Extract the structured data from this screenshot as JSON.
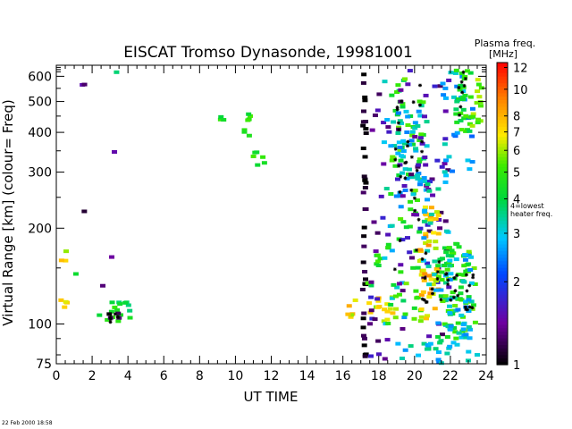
{
  "chart_data": {
    "type": "scatter",
    "title": "EISCAT Tromso Dynasonde,  19981001",
    "xlabel": "UT TIME",
    "ylabel": "Virtual Range [km]    (colour= Freq)",
    "xlim": [
      0,
      24
    ],
    "ylim": [
      75,
      650
    ],
    "y_scale": "log",
    "x_ticks": [
      "0",
      "2",
      "4",
      "6",
      "8",
      "10",
      "12",
      "14",
      "16",
      "18",
      "20",
      "22",
      "24"
    ],
    "y_ticks": [
      "75",
      "100",
      "200",
      "300",
      "400",
      "500",
      "600"
    ],
    "colorbar": {
      "title_line1": "Plasma freq.",
      "title_line2": "[MHz]",
      "scale": "log",
      "range": [
        1,
        12.5
      ],
      "tick_labels": [
        "1",
        "2",
        "3",
        "4",
        "5",
        "6",
        "7",
        "8",
        "10",
        "12"
      ],
      "note_line1": "4=lowest",
      "note_line2": "heater freq."
    },
    "timestamp": "22 Feb 2000 18:58",
    "groups": [
      {
        "x0": 0.2,
        "x1": 0.6,
        "y0": 110,
        "y1": 120,
        "f": 7,
        "count": 4
      },
      {
        "x0": 0.2,
        "x1": 0.6,
        "y0": 155,
        "y1": 172,
        "f": 7,
        "count": 3
      },
      {
        "x0": 1.0,
        "x1": 1.2,
        "y0": 140,
        "y1": 145,
        "f": 4.5,
        "count": 1
      },
      {
        "x0": 1.4,
        "x1": 1.6,
        "y0": 555,
        "y1": 580,
        "f": 1.3,
        "count": 2
      },
      {
        "x0": 1.4,
        "x1": 1.6,
        "y0": 225,
        "y1": 230,
        "f": 1.3,
        "count": 1
      },
      {
        "x0": 2.5,
        "x1": 2.8,
        "y0": 130,
        "y1": 135,
        "f": 1.3,
        "count": 1
      },
      {
        "x0": 2.9,
        "x1": 3.1,
        "y0": 160,
        "y1": 165,
        "f": 1.3,
        "count": 1
      },
      {
        "x0": 3.2,
        "x1": 3.4,
        "y0": 345,
        "y1": 350,
        "f": 1.3,
        "count": 1
      },
      {
        "x0": 3.2,
        "x1": 3.4,
        "y0": 615,
        "y1": 625,
        "f": 3.6,
        "count": 1
      },
      {
        "x0": 2.4,
        "x1": 4.2,
        "y0": 100,
        "y1": 125,
        "f": 4.5,
        "count": 16
      },
      {
        "x0": 2.9,
        "x1": 3.6,
        "y0": 100,
        "y1": 108,
        "f": 1.2,
        "count": 4
      },
      {
        "x0": 9.1,
        "x1": 9.4,
        "y0": 430,
        "y1": 450,
        "f": 4.5,
        "count": 3
      },
      {
        "x0": 10.5,
        "x1": 10.9,
        "y0": 380,
        "y1": 470,
        "f": 4.5,
        "count": 7
      },
      {
        "x0": 10.9,
        "x1": 11.8,
        "y0": 300,
        "y1": 370,
        "f": 4.5,
        "count": 6
      },
      {
        "x0": 16.2,
        "x1": 16.9,
        "y0": 105,
        "y1": 125,
        "f": 7,
        "count": 6
      },
      {
        "x0": 17.1,
        "x1": 17.3,
        "y0": 75,
        "y1": 630,
        "f": 1.05,
        "count": 38
      },
      {
        "x0": 17.4,
        "x1": 18.0,
        "y0": 105,
        "y1": 125,
        "f": 7,
        "count": 6
      },
      {
        "x0": 17.4,
        "x1": 18.1,
        "y0": 130,
        "y1": 180,
        "f": 4.5,
        "count": 8
      },
      {
        "x0": 17.5,
        "x1": 18.6,
        "y0": 75,
        "y1": 630,
        "f": 1.5,
        "count": 26
      },
      {
        "x0": 18.0,
        "x1": 19.0,
        "y0": 100,
        "y1": 125,
        "f": 6.5,
        "count": 10
      },
      {
        "x0": 18.3,
        "x1": 19.5,
        "y0": 75,
        "y1": 630,
        "f": 3.2,
        "count": 24
      },
      {
        "x0": 18.5,
        "x1": 20.5,
        "y0": 100,
        "y1": 600,
        "f": 4.8,
        "count": 70
      },
      {
        "x0": 19.0,
        "x1": 20.8,
        "y0": 250,
        "y1": 500,
        "f": 3.0,
        "count": 45
      },
      {
        "x0": 19.0,
        "x1": 22.0,
        "y0": 90,
        "y1": 630,
        "f": 1.5,
        "count": 60
      },
      {
        "x0": 20.3,
        "x1": 21.4,
        "y0": 100,
        "y1": 240,
        "f": 7.5,
        "count": 50
      },
      {
        "x0": 20.5,
        "x1": 22.0,
        "y0": 80,
        "y1": 300,
        "f": 3.2,
        "count": 40
      },
      {
        "x0": 21.3,
        "x1": 23.4,
        "y0": 90,
        "y1": 180,
        "f": 4.8,
        "count": 75
      },
      {
        "x0": 21.8,
        "x1": 23.2,
        "y0": 90,
        "y1": 170,
        "f": 3.0,
        "count": 35
      },
      {
        "x0": 21.5,
        "x1": 23.3,
        "y0": 300,
        "y1": 630,
        "f": 2.8,
        "count": 30
      },
      {
        "x0": 22.3,
        "x1": 23.2,
        "y0": 400,
        "y1": 630,
        "f": 4.6,
        "count": 30
      },
      {
        "x0": 23.2,
        "x1": 23.8,
        "y0": 400,
        "y1": 600,
        "f": 5.5,
        "count": 14
      },
      {
        "x0": 19.0,
        "x1": 23.6,
        "y0": 75,
        "y1": 100,
        "f": 3.0,
        "count": 22
      }
    ],
    "markers": [
      {
        "x0": 3.0,
        "x1": 3.5,
        "y0": 100,
        "y1": 108,
        "count": 6
      },
      {
        "x0": 18.9,
        "x1": 20.6,
        "y0": 120,
        "y1": 600,
        "count": 30
      },
      {
        "x0": 20.3,
        "x1": 21.6,
        "y0": 110,
        "y1": 220,
        "count": 12
      },
      {
        "x0": 21.6,
        "x1": 23.3,
        "y0": 110,
        "y1": 150,
        "count": 20
      },
      {
        "x0": 22.4,
        "x1": 23.0,
        "y0": 440,
        "y1": 620,
        "count": 8
      }
    ]
  }
}
